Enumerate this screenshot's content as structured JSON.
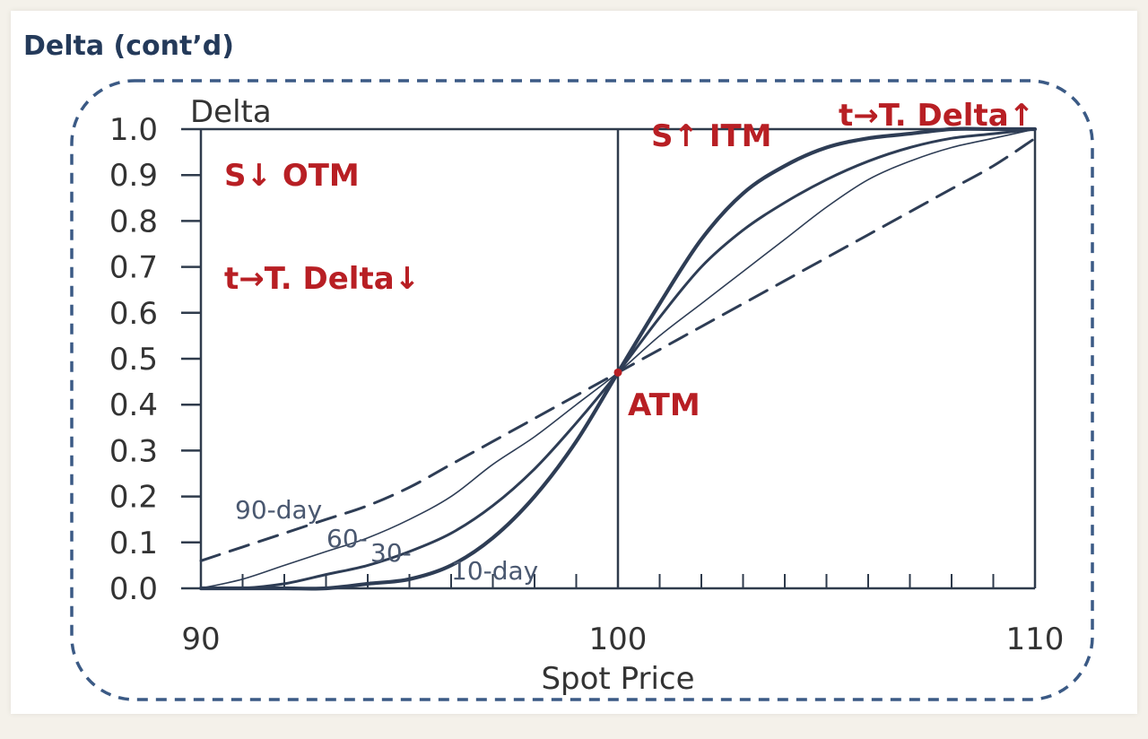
{
  "slide": {
    "title": "Delta (cont’d)"
  },
  "colors": {
    "curve": "#2e3d55",
    "axis": "#2f3b4c",
    "frame": "#3b5a85",
    "annotation": "#b81f24"
  },
  "annotations": {
    "otm": "S↓ OTM",
    "otm_time": "t→T. Delta↓",
    "itm": "S↑ ITM",
    "itm_time": "t→T. Delta↑",
    "atm": "ATM"
  },
  "chart_data": {
    "type": "line",
    "ylabel": "Delta",
    "xlabel": "Spot Price",
    "xlim": [
      90,
      110
    ],
    "ylim": [
      0,
      1
    ],
    "x_ticks": [
      "90",
      "100",
      "110"
    ],
    "y_ticks": [
      "0.0",
      "0.1",
      "0.2",
      "0.3",
      "0.4",
      "0.5",
      "0.6",
      "0.7",
      "0.8",
      "0.9",
      "1.0"
    ],
    "x_minor_step": 1,
    "atm_point": {
      "x": 100,
      "y": 0.47
    },
    "x": [
      90,
      91,
      92,
      93,
      94,
      95,
      96,
      97,
      98,
      99,
      100,
      101,
      102,
      103,
      104,
      105,
      106,
      107,
      108,
      109,
      110
    ],
    "series": [
      {
        "name": "90-day",
        "style": "dashed",
        "values": [
          0.06,
          0.09,
          0.12,
          0.15,
          0.18,
          0.22,
          0.27,
          0.32,
          0.37,
          0.42,
          0.47,
          0.52,
          0.57,
          0.62,
          0.67,
          0.72,
          0.77,
          0.82,
          0.87,
          0.92,
          0.98
        ]
      },
      {
        "name": "60-",
        "style": "thin",
        "values": [
          0.0,
          0.02,
          0.05,
          0.08,
          0.11,
          0.15,
          0.2,
          0.27,
          0.33,
          0.4,
          0.47,
          0.55,
          0.62,
          0.69,
          0.76,
          0.83,
          0.89,
          0.93,
          0.96,
          0.98,
          1.0
        ]
      },
      {
        "name": "30-",
        "style": "medium",
        "values": [
          0.0,
          0.0,
          0.01,
          0.03,
          0.05,
          0.08,
          0.12,
          0.18,
          0.26,
          0.36,
          0.47,
          0.59,
          0.7,
          0.78,
          0.84,
          0.89,
          0.93,
          0.96,
          0.98,
          0.99,
          1.0
        ]
      },
      {
        "name": "10-day",
        "style": "thick",
        "values": [
          0.0,
          0.0,
          0.0,
          0.0,
          0.01,
          0.02,
          0.05,
          0.11,
          0.2,
          0.32,
          0.47,
          0.62,
          0.76,
          0.86,
          0.92,
          0.96,
          0.98,
          0.99,
          1.0,
          1.0,
          1.0
        ]
      }
    ]
  }
}
